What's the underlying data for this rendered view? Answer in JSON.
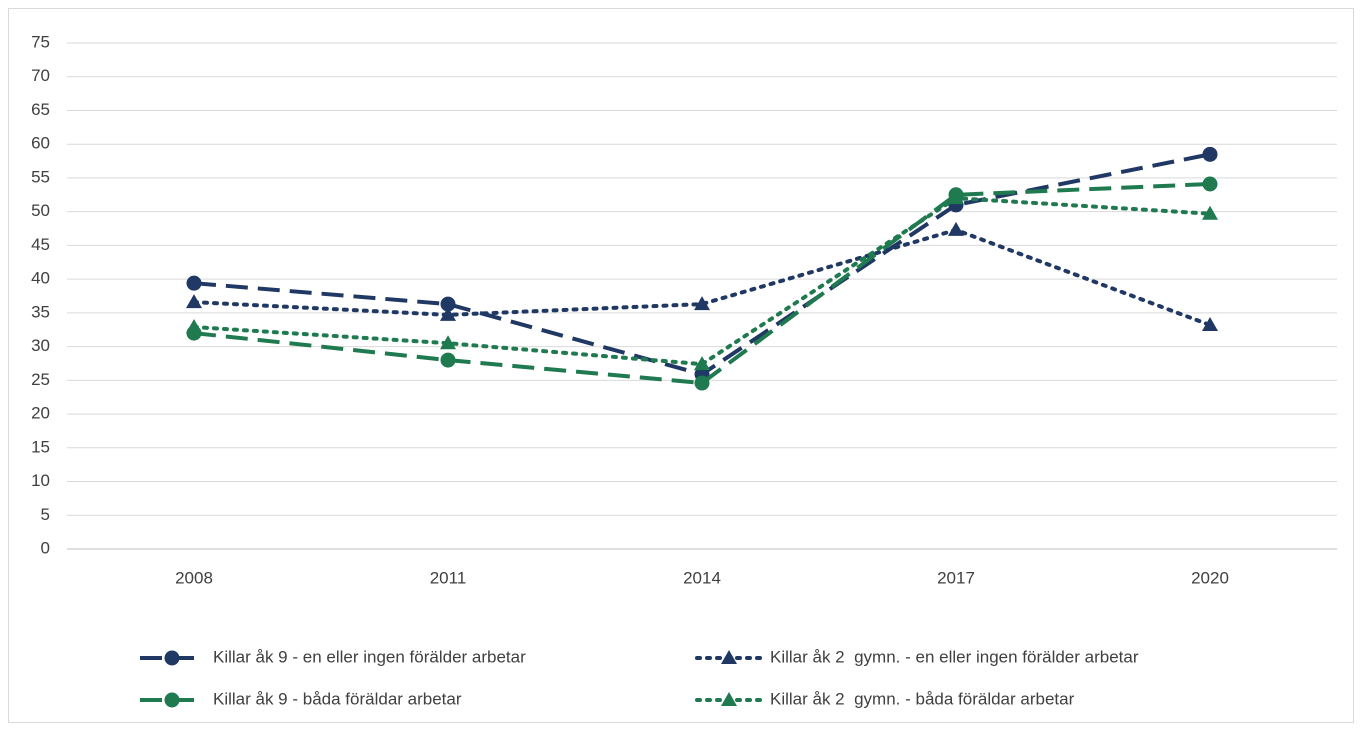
{
  "chart_data": {
    "type": "line",
    "categories": [
      "2008",
      "2011",
      "2014",
      "2017",
      "2020"
    ],
    "series": [
      {
        "name": "Killar åk 9 - en eller ingen förälder arbetar",
        "color": "#203864",
        "dash": "dashed",
        "marker": "circle",
        "values": [
          39.4,
          36.3,
          25.9,
          51.0,
          58.5
        ]
      },
      {
        "name": "Killar åk 2  gymn. - en eller ingen förälder arbetar",
        "color": "#203864",
        "dash": "dotted",
        "marker": "triangle",
        "values": [
          36.6,
          34.7,
          36.3,
          47.3,
          33.2
        ]
      },
      {
        "name": "Killar åk 9 - båda föräldar arbetar",
        "color": "#1f7a50",
        "dash": "dashed",
        "marker": "circle",
        "values": [
          32.0,
          28.0,
          24.6,
          52.5,
          54.1
        ]
      },
      {
        "name": "Killar åk 2  gymn. - båda föräldar arbetar",
        "color": "#1f7a50",
        "dash": "dotted",
        "marker": "triangle",
        "values": [
          32.9,
          30.5,
          27.4,
          52.0,
          49.7
        ]
      }
    ],
    "ylim": [
      0,
      75
    ],
    "yticks": [
      0,
      5,
      10,
      15,
      20,
      25,
      30,
      35,
      40,
      45,
      50,
      55,
      60,
      65,
      70,
      75
    ],
    "grid": true,
    "legend": "bottom"
  }
}
